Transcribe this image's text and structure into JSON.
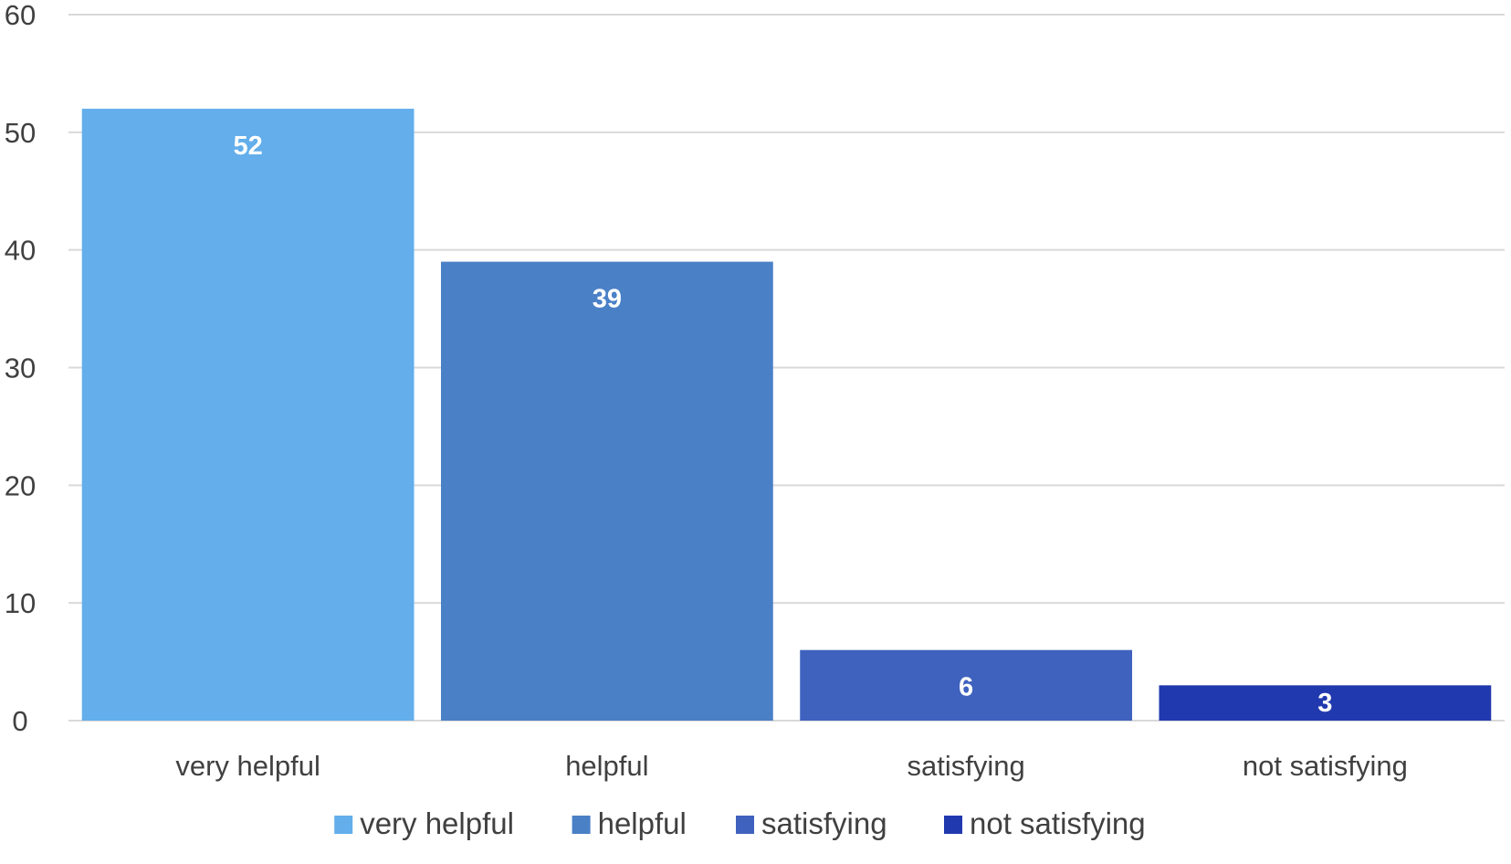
{
  "chart_data": {
    "type": "bar",
    "title": "",
    "xlabel": "",
    "ylabel": "",
    "categories": [
      "very helpful",
      "helpful",
      "satisfying",
      "not satisfying"
    ],
    "values": [
      52,
      39,
      6,
      3
    ],
    "data_labels": [
      "52",
      "39",
      "6",
      "3"
    ],
    "colors": [
      "#63AEEB",
      "#4A80C6",
      "#3F62BE",
      "#2139AE"
    ],
    "ylim": [
      0,
      60
    ],
    "yticks": [
      0,
      10,
      20,
      30,
      40,
      50,
      60
    ],
    "ytick_labels": [
      "0",
      "10",
      "20",
      "30",
      "40",
      "50",
      "60"
    ],
    "grid": true,
    "legend": {
      "position": "bottom",
      "entries": [
        "very helpful",
        "helpful",
        "satisfying",
        "not satisfying"
      ]
    }
  }
}
